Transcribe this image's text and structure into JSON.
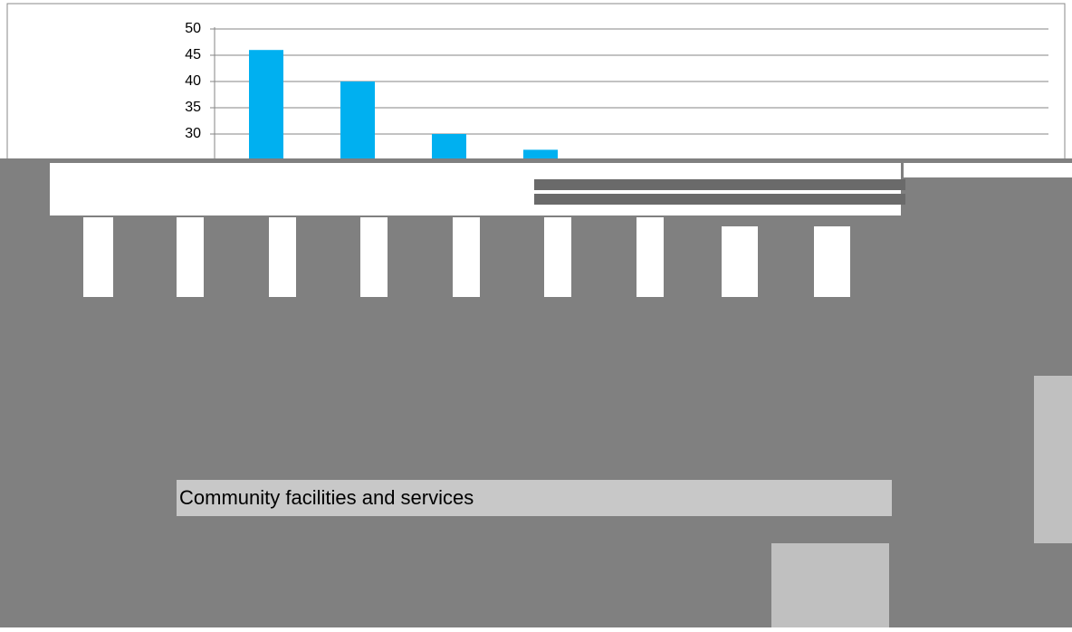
{
  "chart_data": {
    "type": "bar",
    "categories": [
      null,
      null,
      null,
      null
    ],
    "values": [
      46,
      40,
      30,
      27
    ],
    "color": "#00b0f0",
    "ylim": [
      25,
      50
    ],
    "yticks": [
      30,
      35,
      40,
      45,
      50
    ],
    "grid": true,
    "annotation": "Community facilities and services"
  }
}
